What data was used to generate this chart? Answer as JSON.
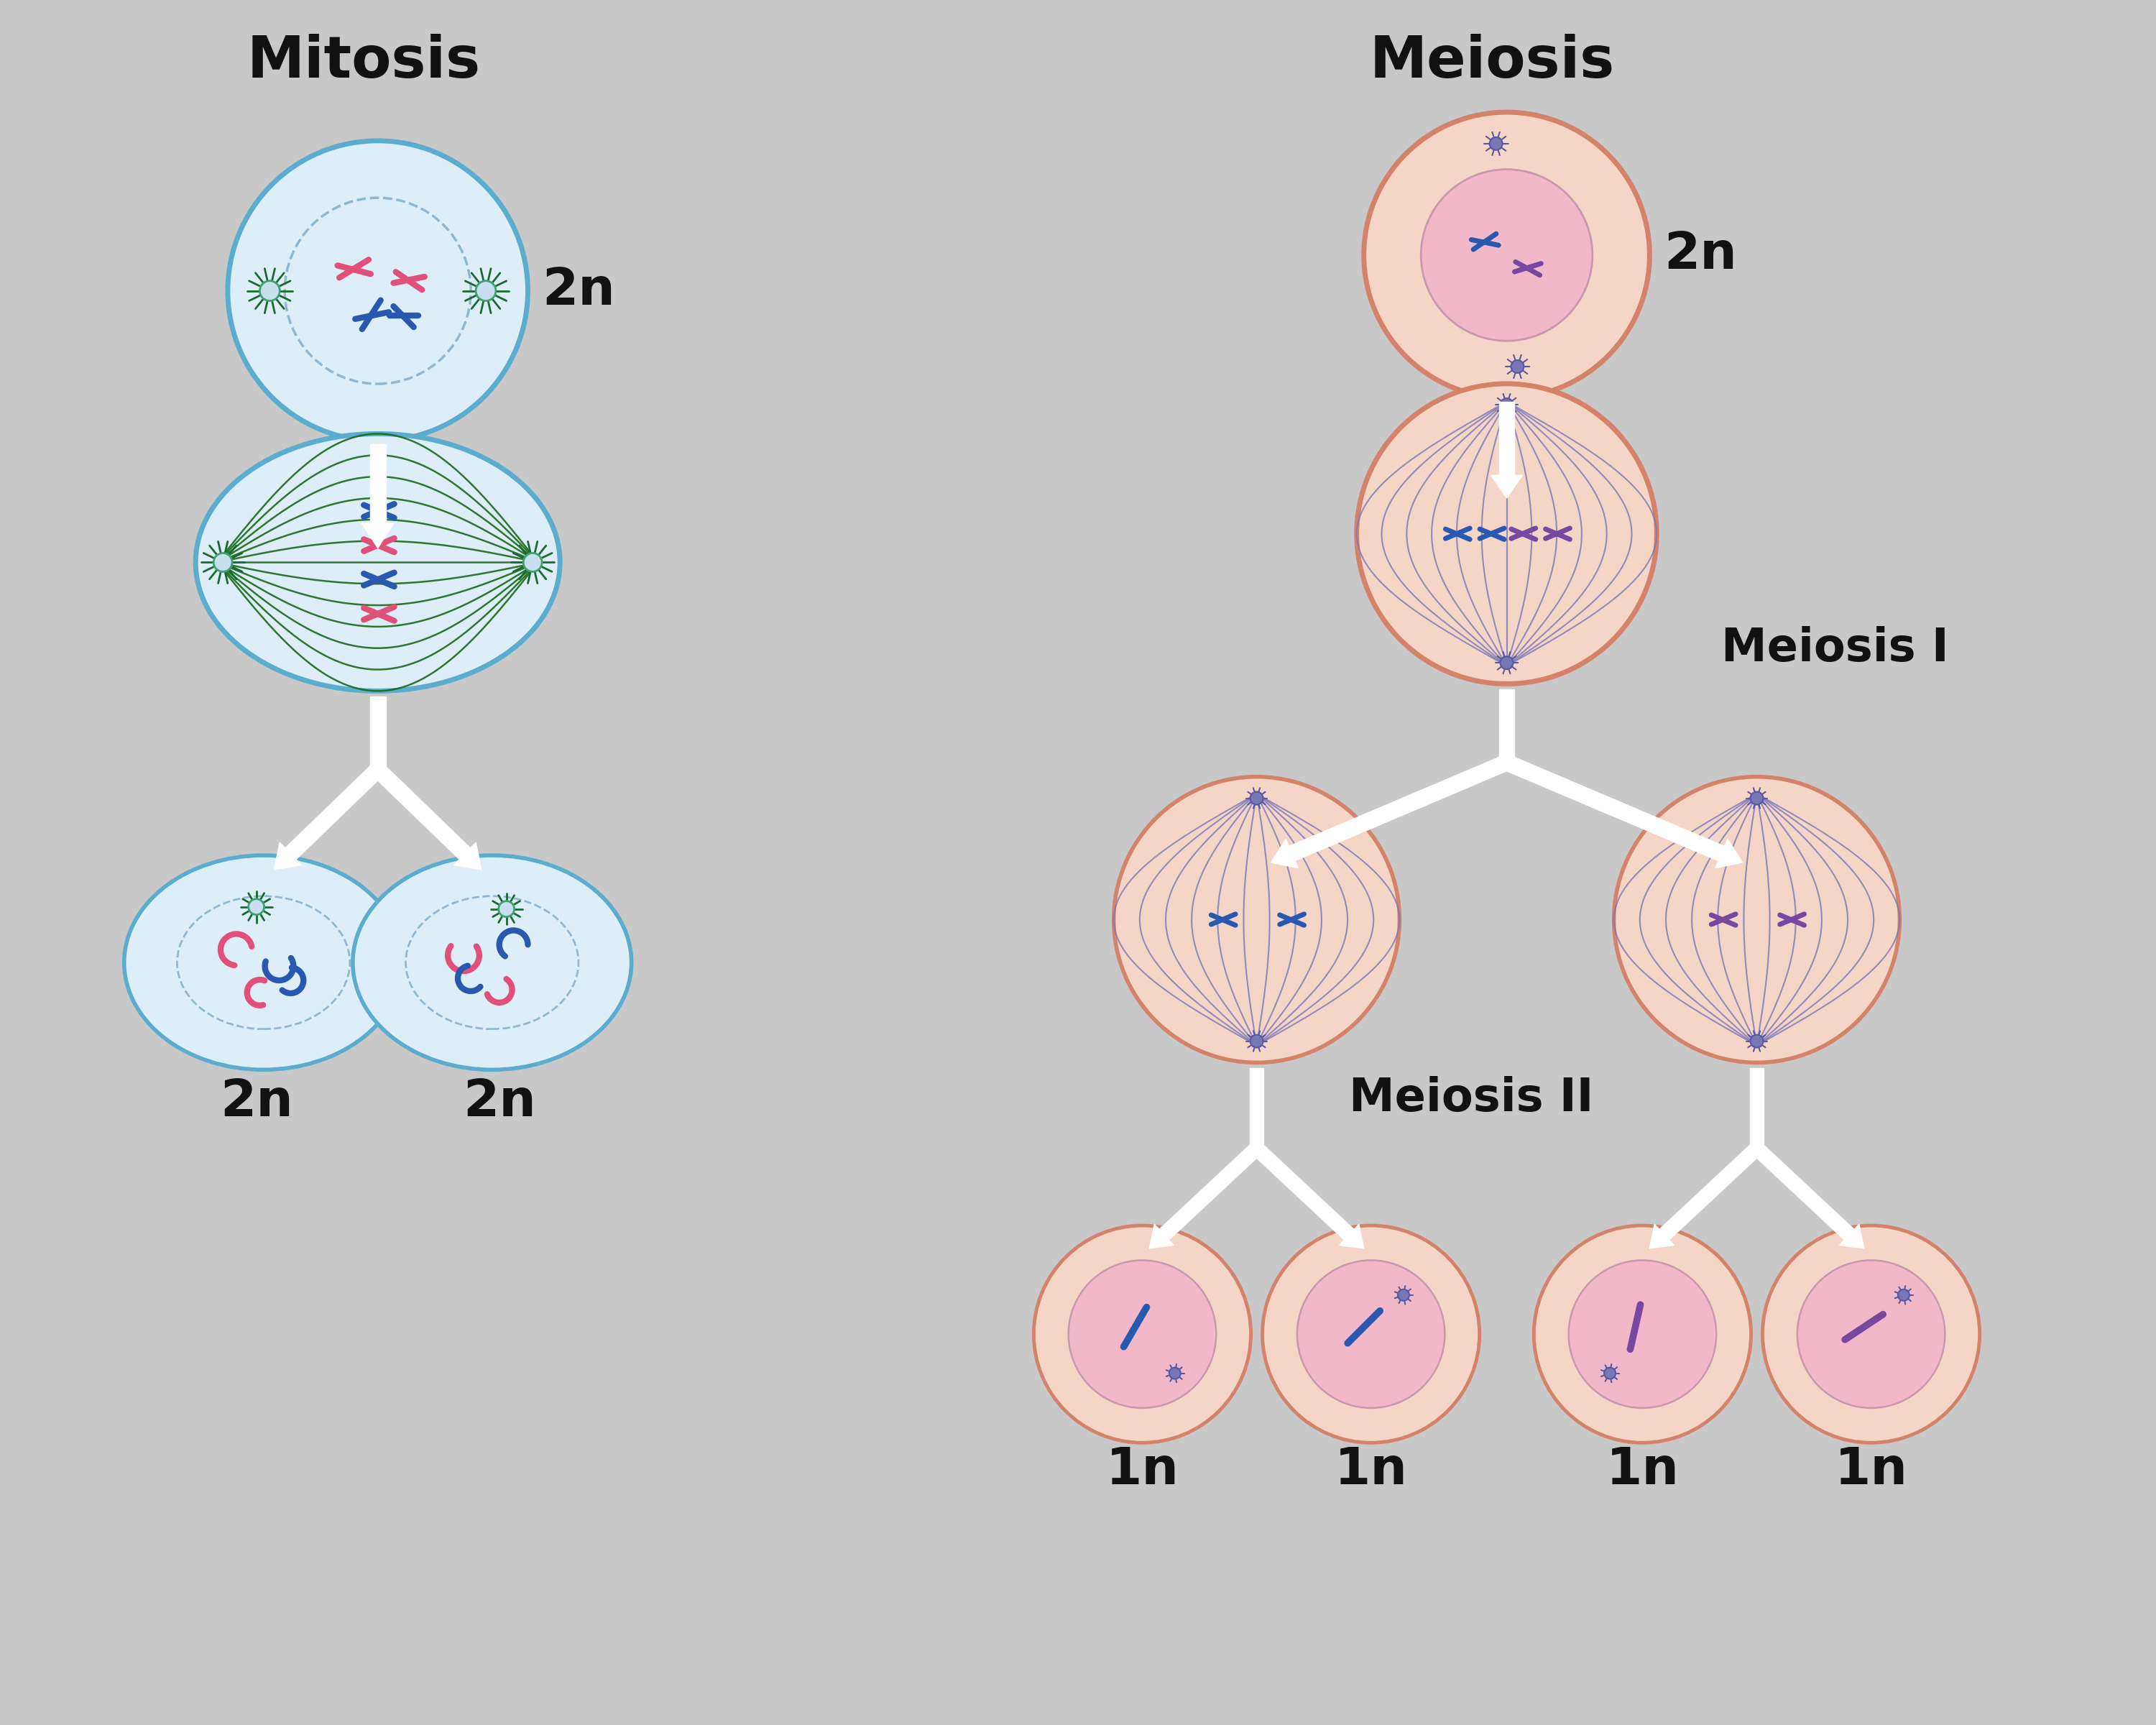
{
  "background_color": "#c8c8c8",
  "title_mitosis": "Mitosis",
  "title_meiosis": "Meiosis",
  "label_meiosis1": "Meiosis I",
  "label_meiosis2": "Meiosis II",
  "title_fontsize": 58,
  "label_fontsize": 46,
  "ploidy_fontsize": 52,
  "mitosis_blue_outer": "#5aadce",
  "mitosis_blue_fill": "#ddeef8",
  "mitosis_nucleus_fill": "#c8dff0",
  "meiosis_orange_outer": "#d4826a",
  "meiosis_orange_fill": "#f5d5c5",
  "meiosis_pink_nucleus": "#f0b8c8",
  "spindle_green": "#1a6a1a",
  "spindle_purple": "#7878b8",
  "chr_pink": "#e0507a",
  "chr_blue": "#2858b0",
  "chr_purple": "#7848a0",
  "chr_teal": "#30907a",
  "centrosome_green_body": "#40a070",
  "centrosome_green_ray": "#1a6a30",
  "centrosome_purple_body": "#7878b8",
  "centrosome_purple_ray": "#5858a0",
  "arrow_white": "#ffffff",
  "text_color": "#111111"
}
